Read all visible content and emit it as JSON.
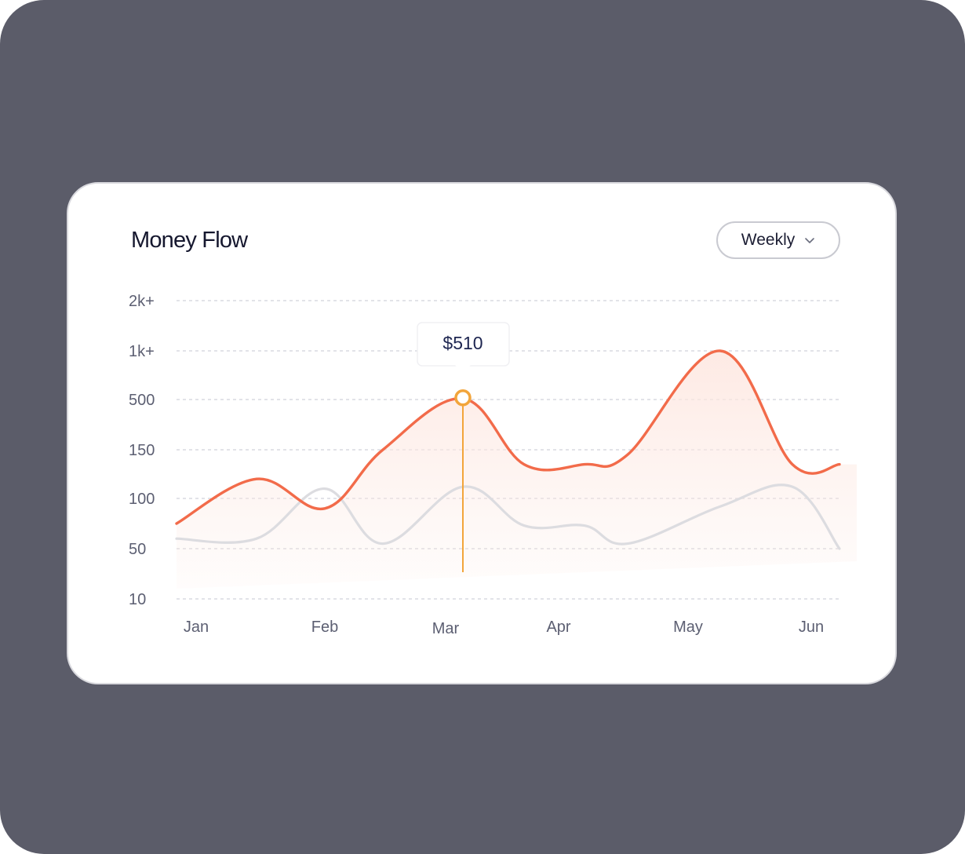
{
  "card": {
    "title": "Money Flow",
    "period_select": {
      "selected": "Weekly"
    }
  },
  "chart_data": {
    "type": "area",
    "categories": [
      "Jan",
      "Feb",
      "Mar",
      "Apr",
      "May",
      "Jun"
    ],
    "y_ticks": [
      "2k+",
      "1k+",
      "500",
      "150",
      "100",
      "50",
      "10"
    ],
    "y_scale": "categorical (non-linear tick ladder)",
    "grid": "horizontal dashed",
    "series": [
      {
        "color": "#f26b4a",
        "fill": "gradient",
        "points": [
          {
            "x": "Jan",
            "y": 75
          },
          {
            "x": "Jan–Feb",
            "y": 120
          },
          {
            "x": "Feb",
            "y": 90
          },
          {
            "x": "Feb–Mar",
            "y": 150
          },
          {
            "x": "Mar",
            "y": 510
          },
          {
            "x": "Mar–Apr",
            "y": 135
          },
          {
            "x": "Apr",
            "y": 135
          },
          {
            "x": "Apr–May",
            "y": 145
          },
          {
            "x": "May",
            "y": 1000
          },
          {
            "x": "May–Jun",
            "y": 135
          },
          {
            "x": "Jun",
            "y": 135
          }
        ]
      },
      {
        "color": "#dcdce0",
        "points": [
          {
            "x": "Jan",
            "y": 60
          },
          {
            "x": "Jan–Feb",
            "y": 60
          },
          {
            "x": "Feb",
            "y": 110
          },
          {
            "x": "Feb–Mar",
            "y": 55
          },
          {
            "x": "Mar",
            "y": 112
          },
          {
            "x": "Mar–Apr",
            "y": 73
          },
          {
            "x": "Apr",
            "y": 73
          },
          {
            "x": "Apr–May",
            "y": 55
          },
          {
            "x": "May",
            "y": 92
          },
          {
            "x": "May–Jun",
            "y": 112
          },
          {
            "x": "Jun",
            "y": 50
          }
        ]
      }
    ],
    "highlight": {
      "x": "Mar",
      "value": 510,
      "label": "$510",
      "color": "#f2a53b"
    }
  }
}
